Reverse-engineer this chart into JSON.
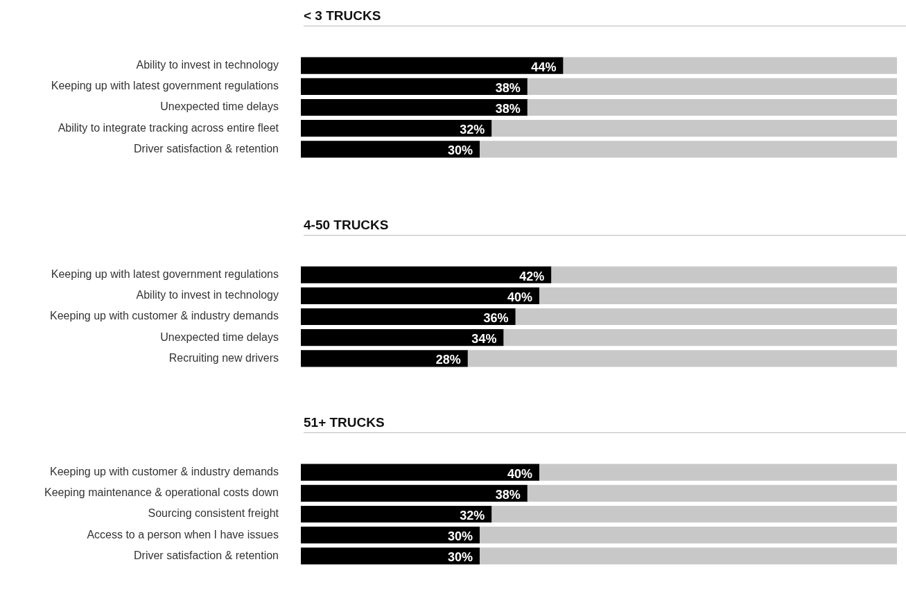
{
  "chart_data": [
    {
      "type": "bar",
      "orientation": "horizontal",
      "stacked": true,
      "title": "< 3 TRUCKS",
      "categories": [
        "Ability to invest in technology",
        "Keeping up with latest government regulations",
        "Unexpected time delays",
        "Ability to integrate tracking across entire fleet",
        "Driver satisfaction & retention"
      ],
      "xlim": [
        0,
        100
      ],
      "tick_labels": "y",
      "series": [
        {
          "color": "#000000",
          "values": [
            44,
            38,
            38,
            32,
            30
          ],
          "value_labels": [
            "44%",
            "38%",
            "38%",
            "32%",
            "30%"
          ]
        },
        {
          "color": "#c8c8c9",
          "values": [
            56,
            62,
            62,
            68,
            70
          ]
        }
      ]
    },
    {
      "type": "bar",
      "orientation": "horizontal",
      "stacked": true,
      "title": "4-50 TRUCKS",
      "categories": [
        "Keeping up with latest government regulations",
        "Ability to invest in technology",
        "Keeping up with customer & industry demands",
        "Unexpected time delays",
        "Recruiting new drivers"
      ],
      "xlim": [
        0,
        100
      ],
      "tick_labels": "y",
      "series": [
        {
          "color": "#000000",
          "values": [
            42,
            40,
            36,
            34,
            28
          ],
          "value_labels": [
            "42%",
            "40%",
            "36%",
            "34%",
            "28%"
          ]
        },
        {
          "color": "#c8c8c9",
          "values": [
            58,
            60,
            64,
            66,
            72
          ]
        }
      ]
    },
    {
      "type": "bar",
      "orientation": "horizontal",
      "stacked": true,
      "title": "51+ TRUCKS",
      "categories": [
        "Keeping up with customer & industry demands",
        "Keeping maintenance & operational costs down",
        "Sourcing consistent freight",
        "Access to a person when I have issues",
        "Driver satisfaction & retention"
      ],
      "xlim": [
        0,
        100
      ],
      "tick_labels": "y",
      "series": [
        {
          "color": "#000000",
          "values": [
            40,
            38,
            32,
            30,
            30
          ],
          "value_labels": [
            "40%",
            "38%",
            "32%",
            "30%",
            "30%"
          ]
        },
        {
          "color": "#c8c8c9",
          "values": [
            60,
            62,
            68,
            70,
            70
          ]
        }
      ]
    }
  ]
}
